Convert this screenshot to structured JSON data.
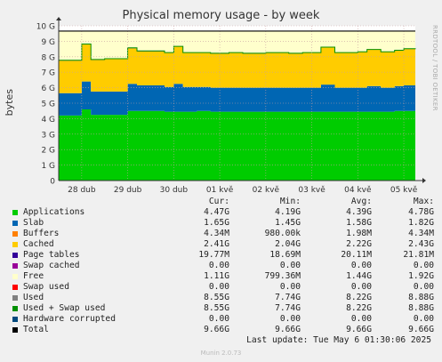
{
  "title": "Physical memory usage - by week",
  "side_text": "RRDTOOL / TOBI OETIKER",
  "footer": {
    "last_update": "Last update: Tue May  6 01:30:06 2025",
    "munin": "Munin 2.0.73"
  },
  "legend_header": {
    "cur": "Cur:",
    "min": "Min:",
    "avg": "Avg:",
    "max": "Max:"
  },
  "legend": [
    {
      "name": "Applications",
      "color": "#00cc00",
      "cur": "4.47G",
      "min": "4.19G",
      "avg": "4.39G",
      "max": "4.78G"
    },
    {
      "name": "Slab",
      "color": "#0066b3",
      "cur": "1.65G",
      "min": "1.45G",
      "avg": "1.58G",
      "max": "1.82G"
    },
    {
      "name": "Buffers",
      "color": "#ff8000",
      "cur": "4.34M",
      "min": "980.00k",
      "avg": "1.98M",
      "max": "4.34M"
    },
    {
      "name": "Cached",
      "color": "#ffcc00",
      "cur": "2.41G",
      "min": "2.04G",
      "avg": "2.22G",
      "max": "2.43G"
    },
    {
      "name": "Page tables",
      "color": "#330099",
      "cur": "19.77M",
      "min": "18.69M",
      "avg": "20.11M",
      "max": "21.81M"
    },
    {
      "name": "Swap cached",
      "color": "#990099",
      "cur": "0.00",
      "min": "0.00",
      "avg": "0.00",
      "max": "0.00"
    },
    {
      "name": "Free",
      "color": "#ffffcc",
      "cur": "1.11G",
      "min": "799.36M",
      "avg": "1.44G",
      "max": "1.92G"
    },
    {
      "name": "Swap used",
      "color": "#ff0000",
      "cur": "0.00",
      "min": "0.00",
      "avg": "0.00",
      "max": "0.00"
    },
    {
      "name": "Used",
      "color": "#808080",
      "cur": "8.55G",
      "min": "7.74G",
      "avg": "8.22G",
      "max": "8.88G"
    },
    {
      "name": "Used + Swap used",
      "color": "#008f00",
      "cur": "8.55G",
      "min": "7.74G",
      "avg": "8.22G",
      "max": "8.88G"
    },
    {
      "name": "Hardware corrupted",
      "color": "#00487d",
      "cur": "0.00",
      "min": "0.00",
      "avg": "0.00",
      "max": "0.00"
    },
    {
      "name": "Total",
      "color": "#000000",
      "cur": "9.66G",
      "min": "9.66G",
      "avg": "9.66G",
      "max": "9.66G"
    }
  ],
  "chart_data": {
    "type": "area",
    "title": "Physical memory usage - by week",
    "ylabel": "bytes",
    "ylim": [
      0,
      10
    ],
    "y_unit": "G",
    "yticks": [
      "0",
      "1 G",
      "2 G",
      "3 G",
      "4 G",
      "5 G",
      "6 G",
      "7 G",
      "8 G",
      "9 G",
      "10 G"
    ],
    "xticks": [
      "28 dub",
      "29 dub",
      "30 dub",
      "01 kvě",
      "02 kvě",
      "03 kvě",
      "04 kvě",
      "05 kvě"
    ],
    "grid": true,
    "stacked": true,
    "x_days": [
      0,
      0.3,
      0.5,
      0.7,
      1.0,
      1.3,
      1.5,
      1.7,
      2.0,
      2.3,
      2.5,
      2.7,
      3.0,
      3.3,
      3.5,
      3.7,
      4.0,
      4.3,
      4.5,
      4.7,
      5.0,
      5.3,
      5.5,
      5.7,
      6.0,
      6.3,
      6.5,
      6.7,
      7.0,
      7.3,
      7.5,
      7.75
    ],
    "series": [
      {
        "name": "Applications",
        "color": "#00cc00",
        "values": [
          4.2,
          4.2,
          4.6,
          4.25,
          4.25,
          4.25,
          4.5,
          4.5,
          4.5,
          4.45,
          4.45,
          4.45,
          4.5,
          4.45,
          4.45,
          4.45,
          4.45,
          4.45,
          4.45,
          4.45,
          4.45,
          4.45,
          4.45,
          4.45,
          4.45,
          4.45,
          4.45,
          4.45,
          4.45,
          4.5,
          4.5,
          4.47
        ]
      },
      {
        "name": "Slab",
        "color": "#0066b3",
        "values": [
          1.45,
          1.45,
          1.8,
          1.5,
          1.5,
          1.5,
          1.75,
          1.65,
          1.65,
          1.6,
          1.8,
          1.6,
          1.55,
          1.55,
          1.55,
          1.55,
          1.55,
          1.55,
          1.55,
          1.55,
          1.55,
          1.55,
          1.55,
          1.75,
          1.55,
          1.55,
          1.55,
          1.65,
          1.55,
          1.6,
          1.65,
          1.65
        ]
      },
      {
        "name": "Buffers",
        "color": "#ff8000",
        "values": [
          0.002,
          0.002,
          0.002,
          0.002,
          0.002,
          0.002,
          0.002,
          0.002,
          0.002,
          0.002,
          0.002,
          0.002,
          0.002,
          0.002,
          0.002,
          0.002,
          0.002,
          0.002,
          0.002,
          0.002,
          0.002,
          0.002,
          0.002,
          0.002,
          0.002,
          0.002,
          0.002,
          0.002,
          0.002,
          0.002,
          0.002,
          0.004
        ]
      },
      {
        "name": "Cached",
        "color": "#ffcc00",
        "values": [
          2.1,
          2.1,
          2.4,
          2.05,
          2.1,
          2.1,
          2.3,
          2.2,
          2.2,
          2.2,
          2.4,
          2.2,
          2.2,
          2.2,
          2.2,
          2.25,
          2.2,
          2.2,
          2.25,
          2.25,
          2.2,
          2.25,
          2.25,
          2.4,
          2.25,
          2.25,
          2.3,
          2.35,
          2.3,
          2.3,
          2.35,
          2.41
        ]
      },
      {
        "name": "Page tables",
        "color": "#330099",
        "values": [
          0.02,
          0.02,
          0.02,
          0.02,
          0.02,
          0.02,
          0.02,
          0.02,
          0.02,
          0.02,
          0.02,
          0.02,
          0.02,
          0.02,
          0.02,
          0.02,
          0.02,
          0.02,
          0.02,
          0.02,
          0.02,
          0.02,
          0.02,
          0.02,
          0.02,
          0.02,
          0.02,
          0.02,
          0.02,
          0.02,
          0.02,
          0.02
        ]
      },
      {
        "name": "Free",
        "color": "#ffffcc",
        "values": [
          1.89,
          1.89,
          0.84,
          1.84,
          1.79,
          1.79,
          1.09,
          1.29,
          1.29,
          1.39,
          0.99,
          1.39,
          1.39,
          1.44,
          1.44,
          1.39,
          1.44,
          1.44,
          1.39,
          1.39,
          1.44,
          1.39,
          1.39,
          1.04,
          1.39,
          1.39,
          1.34,
          1.19,
          1.34,
          1.24,
          1.14,
          1.11
        ]
      }
    ],
    "total": 9.66
  }
}
